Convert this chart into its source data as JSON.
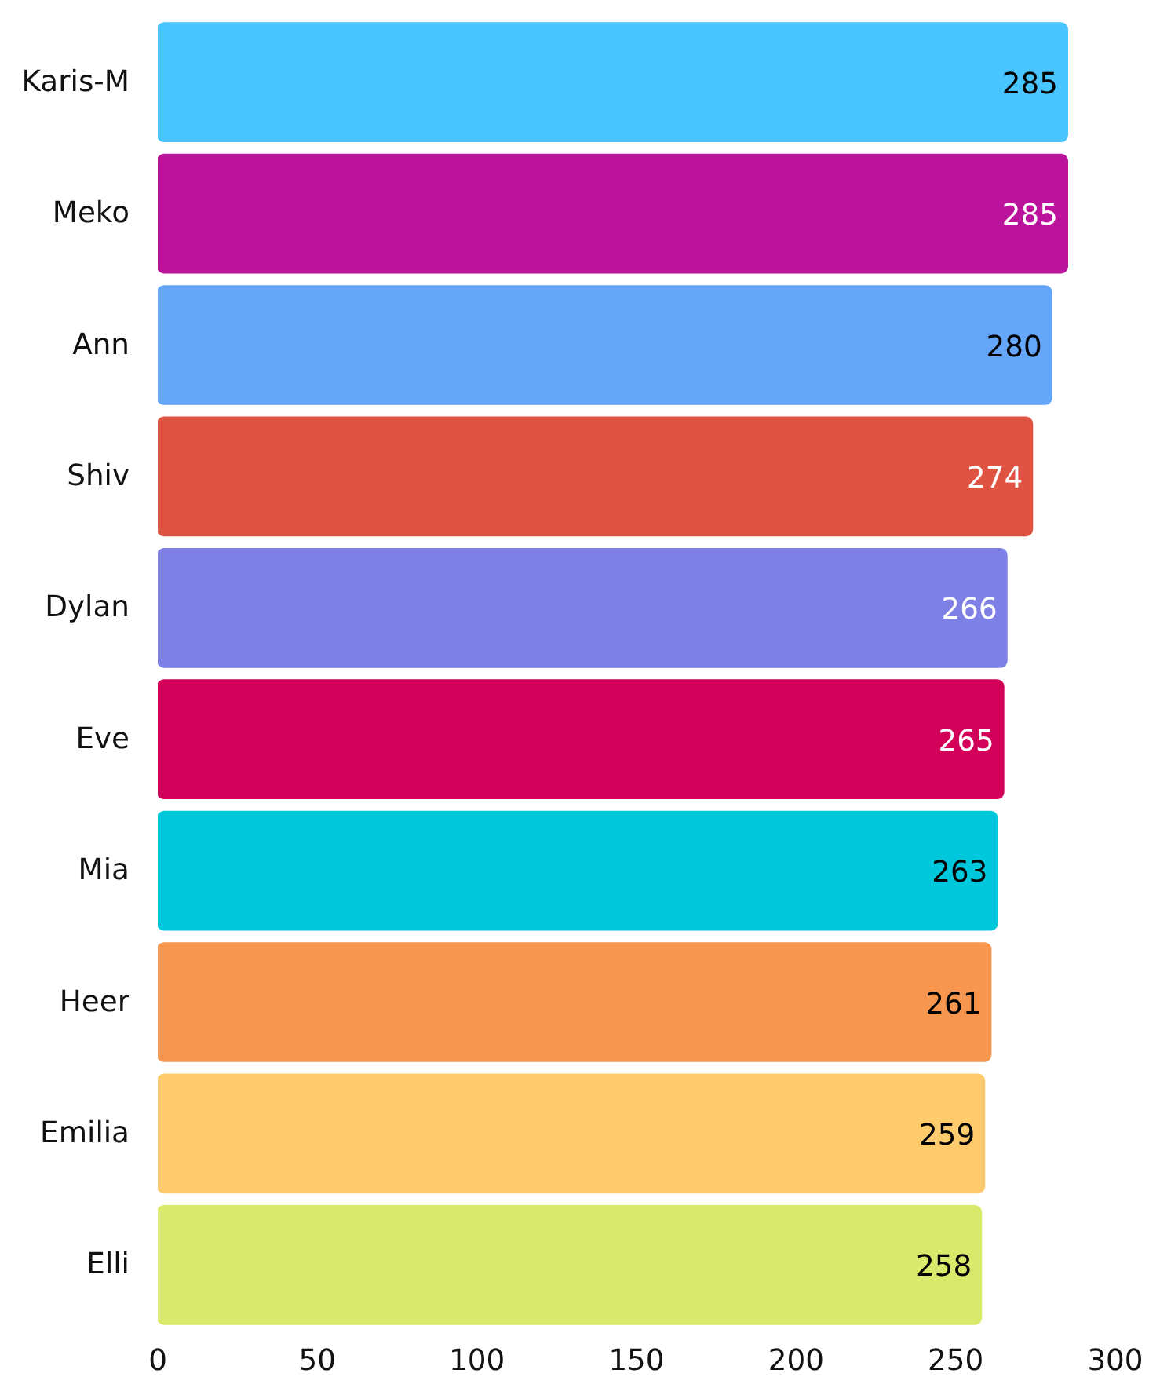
{
  "chart_data": {
    "type": "bar",
    "orientation": "horizontal",
    "categories": [
      "Karis-M",
      "Meko",
      "Ann",
      "Shiv",
      "Dylan",
      "Eve",
      "Mia",
      "Heer",
      "Emilia",
      "Elli"
    ],
    "values": [
      285,
      285,
      280,
      274,
      266,
      265,
      263,
      261,
      259,
      258
    ],
    "colors": [
      "#48c4fe",
      "#bb139b",
      "#65a6f9",
      "#df5343",
      "#7e80e6",
      "#d20059",
      "#00c8dc",
      "#f7974f",
      "#fecb6c",
      "#d9e96b"
    ],
    "xlim": [
      0,
      300
    ],
    "xticks": [
      0,
      50,
      100,
      150,
      200,
      250,
      300
    ],
    "data_labels": true,
    "grid": false
  }
}
